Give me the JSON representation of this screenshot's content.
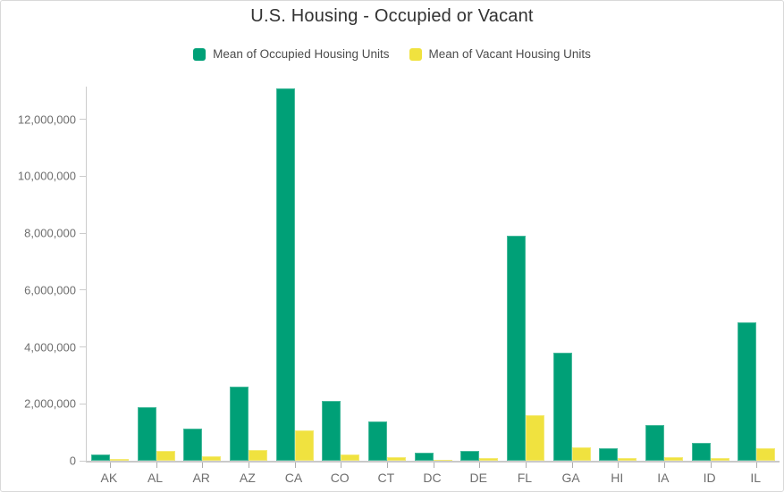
{
  "title": "U.S. Housing - Occupied or Vacant",
  "colors": {
    "occupied": "#00A077",
    "vacant": "#F0E23F",
    "axis_line": "#c9c9c9",
    "tick_mark": "#adadad",
    "axis_text": "#6e6e6e",
    "title_text": "#323232",
    "legend_text": "#4c4c4c",
    "frame_border": "#d9d9d9",
    "background": "#ffffff"
  },
  "legend": [
    {
      "label": "Mean of Occupied Housing Units",
      "color": "#00A077"
    },
    {
      "label": "Mean of Vacant Housing Units",
      "color": "#F0E23F"
    }
  ],
  "chart_data": {
    "type": "bar",
    "title": "U.S. Housing - Occupied or Vacant",
    "xlabel": "",
    "ylabel": "",
    "grid": false,
    "legend_position": "top",
    "categories": [
      "AK",
      "AL",
      "AR",
      "AZ",
      "CA",
      "CO",
      "CT",
      "DC",
      "DE",
      "FL",
      "GA",
      "HI",
      "IA",
      "ID",
      "IL"
    ],
    "series": [
      {
        "name": "Mean of Occupied Housing Units",
        "color": "#00A077",
        "values": [
          230000,
          1870000,
          1140000,
          2600000,
          13100000,
          2110000,
          1370000,
          280000,
          360000,
          7900000,
          3800000,
          440000,
          1260000,
          620000,
          4850000
        ]
      },
      {
        "name": "Mean of Vacant Housing Units",
        "color": "#F0E23F",
        "values": [
          60000,
          350000,
          170000,
          370000,
          1080000,
          210000,
          120000,
          35000,
          100000,
          1600000,
          460000,
          80000,
          140000,
          80000,
          440000
        ]
      }
    ],
    "ylim": [
      0,
      13150000
    ],
    "yticks": [
      0,
      2000000,
      4000000,
      6000000,
      8000000,
      10000000,
      12000000
    ],
    "ytick_labels": [
      "0",
      "2,000,000",
      "4,000,000",
      "6,000,000",
      "8,000,000",
      "10,000,000",
      "12,000,000"
    ]
  }
}
